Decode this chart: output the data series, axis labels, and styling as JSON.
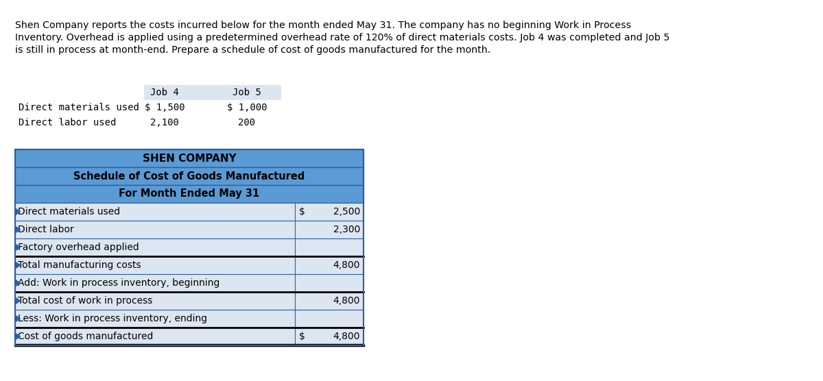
{
  "bg_color": "#ffffff",
  "intro_lines": [
    "Shen Company reports the costs incurred below for the month ended May 31. The company has no beginning Work in Process",
    "Inventory. Overhead is applied using a predetermined overhead rate of 120% of direct materials costs. Job 4 was completed and Job 5",
    "is still in process at month-end. Prepare a schedule of cost of goods manufactured for the month."
  ],
  "input_table": {
    "header_bg": "#dce6f1",
    "col_headers": [
      "",
      "Job 4",
      "Job 5"
    ],
    "rows": [
      [
        "Direct materials used",
        "$ 1,500",
        "$ 1,000"
      ],
      [
        "Direct labor used",
        "2,100",
        "200"
      ]
    ]
  },
  "schedule_table": {
    "title1": "SHEN COMPANY",
    "title2": "Schedule of Cost of Goods Manufactured",
    "title3": "For Month Ended May 31",
    "header_bg": "#5b9bd5",
    "row_bg": "#dce6f1",
    "border_color": "#2e5fa3",
    "rows": [
      {
        "label": "Direct materials used",
        "dollar": "$",
        "value": "2,500",
        "thick_top": false,
        "thick_bottom": false
      },
      {
        "label": "Direct labor",
        "dollar": "",
        "value": "2,300",
        "thick_top": false,
        "thick_bottom": false
      },
      {
        "label": "Factory overhead applied",
        "dollar": "",
        "value": "",
        "thick_top": false,
        "thick_bottom": true
      },
      {
        "label": "Total manufacturing costs",
        "dollar": "",
        "value": "4,800",
        "thick_top": false,
        "thick_bottom": false
      },
      {
        "label": "Add: Work in process inventory, beginning",
        "dollar": "",
        "value": "",
        "thick_top": false,
        "thick_bottom": true
      },
      {
        "label": "Total cost of work in process",
        "dollar": "",
        "value": "4,800",
        "thick_top": false,
        "thick_bottom": false
      },
      {
        "label": "Less: Work in process inventory, ending",
        "dollar": "",
        "value": "",
        "thick_top": false,
        "thick_bottom": true
      },
      {
        "label": "Cost of goods manufactured",
        "dollar": "$",
        "value": "4,800",
        "thick_top": false,
        "thick_bottom": true
      }
    ]
  }
}
